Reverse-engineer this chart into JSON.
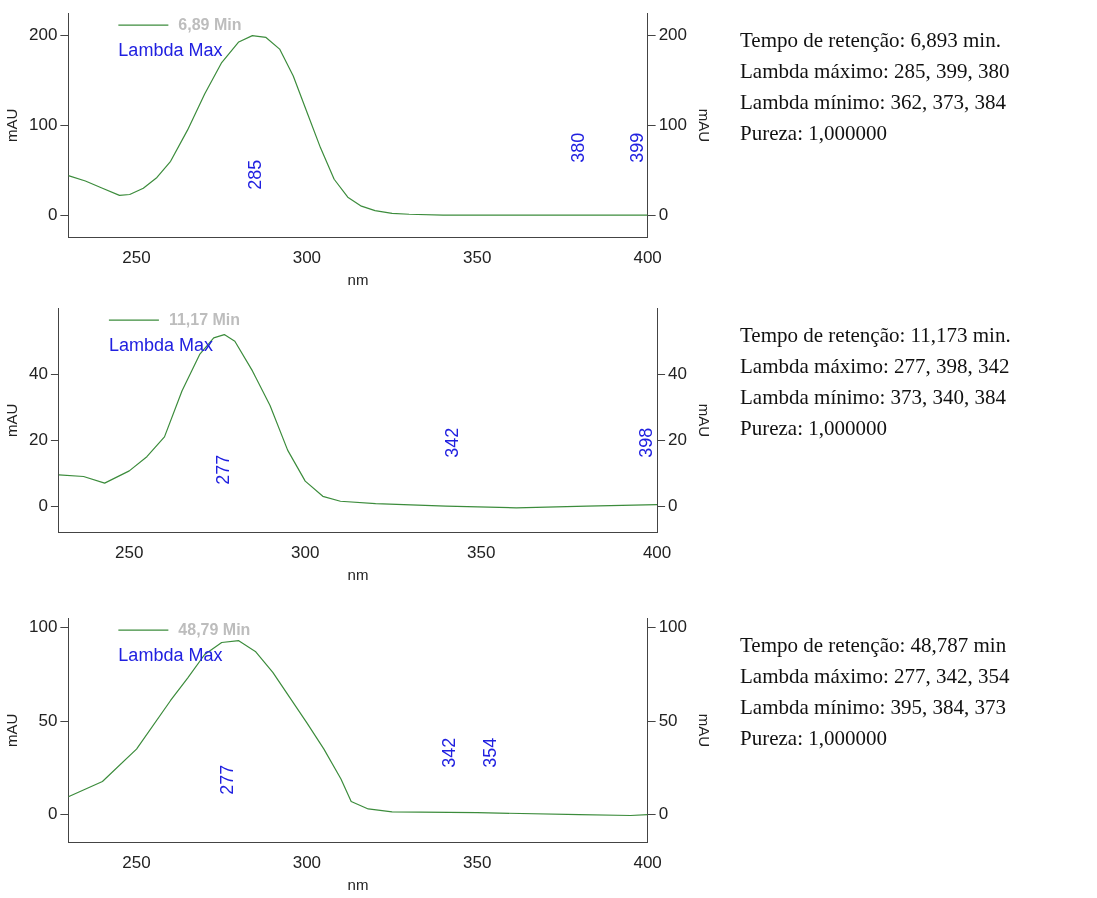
{
  "chart_data": [
    {
      "type": "line",
      "xlabel": "nm",
      "ylabel": "mAU",
      "y2label": "mAU",
      "legend": "top left",
      "annotations": [
        "Lambda Max",
        "285",
        "380",
        "399"
      ],
      "xlim": [
        230,
        400
      ],
      "xticks": [
        250,
        300,
        350,
        400
      ],
      "ylim": [
        -25,
        225
      ],
      "yticks": [
        0,
        100,
        200
      ],
      "y2lim": [
        -25,
        225
      ],
      "y2ticks": [
        0,
        100,
        200
      ],
      "series": [
        {
          "name": "6,89 Min",
          "color": "#3c8c3c",
          "x": [
            230,
            235,
            240,
            245,
            248,
            252,
            256,
            260,
            265,
            270,
            275,
            280,
            284,
            288,
            292,
            296,
            300,
            304,
            308,
            312,
            316,
            320,
            325,
            330,
            340,
            360,
            380,
            400
          ],
          "values": [
            44,
            38,
            30,
            22,
            23,
            30,
            42,
            60,
            95,
            135,
            170,
            193,
            200,
            198,
            185,
            155,
            115,
            75,
            40,
            20,
            10,
            5,
            2,
            1,
            0,
            0,
            0,
            0
          ]
        }
      ]
    },
    {
      "type": "other",
      "annotations": [
        "Tempo de retenção: 6,893 min.",
        "Lambda máximo: 285, 399, 380",
        "Lambda mínimo: 362, 373, 384",
        "Pureza: 1,000000"
      ]
    },
    {
      "type": "line",
      "xlabel": "nm",
      "ylabel": "mAU",
      "y2label": "mAU",
      "legend": "top left",
      "annotations": [
        "Lambda Max",
        "277",
        "342",
        "398"
      ],
      "xlim": [
        230,
        400
      ],
      "xticks": [
        250,
        300,
        350,
        400
      ],
      "ylim": [
        -8,
        60
      ],
      "yticks": [
        0,
        20,
        40
      ],
      "y2lim": [
        -8,
        60
      ],
      "y2ticks": [
        0,
        20,
        40
      ],
      "series": [
        {
          "name": "11,17 Min",
          "color": "#3c8c3c",
          "x": [
            230,
            237,
            243,
            250,
            255,
            260,
            265,
            270,
            274,
            277,
            280,
            285,
            290,
            295,
            300,
            305,
            310,
            320,
            340,
            360,
            380,
            400
          ],
          "values": [
            9.5,
            9,
            7,
            10.7,
            15,
            21,
            35,
            46,
            51,
            52,
            50,
            41,
            30.5,
            17,
            7.6,
            3,
            1.5,
            0.8,
            0,
            -0.5,
            0,
            0.5
          ]
        }
      ]
    },
    {
      "type": "other",
      "annotations": [
        "Tempo de retenção: 11,173 min.",
        "Lambda máximo: 277, 398, 342",
        "Lambda mínimo: 373, 340, 384",
        "Pureza: 1,000000"
      ]
    },
    {
      "type": "line",
      "xlabel": "nm",
      "ylabel": "mAU",
      "y2label": "mAU",
      "legend": "top left",
      "annotations": [
        "Lambda Max",
        "277",
        "342",
        "354"
      ],
      "xlim": [
        230,
        400
      ],
      "xticks": [
        250,
        300,
        350,
        400
      ],
      "ylim": [
        -15,
        105
      ],
      "yticks": [
        0,
        50,
        100
      ],
      "y2lim": [
        -15,
        105
      ],
      "y2ticks": [
        0,
        50,
        100
      ],
      "series": [
        {
          "name": "48,79 Min",
          "color": "#3c8c3c",
          "x": [
            230,
            240,
            250,
            260,
            265,
            270,
            275,
            280,
            285,
            290,
            295,
            300,
            305,
            310,
            313,
            318,
            325,
            350,
            380,
            395,
            400
          ],
          "values": [
            9.5,
            17.7,
            35,
            61,
            73,
            85.6,
            92,
            93,
            87,
            76,
            62.5,
            49,
            35,
            19,
            7,
            3,
            1.4,
            1,
            0,
            -0.5,
            0
          ]
        }
      ]
    },
    {
      "type": "other",
      "annotations": [
        "Tempo de retenção: 48,787 min",
        "Lambda máximo: 277, 342, 354",
        "Lambda mínimo: 395, 384, 373",
        "Pureza: 1,000000"
      ]
    }
  ]
}
